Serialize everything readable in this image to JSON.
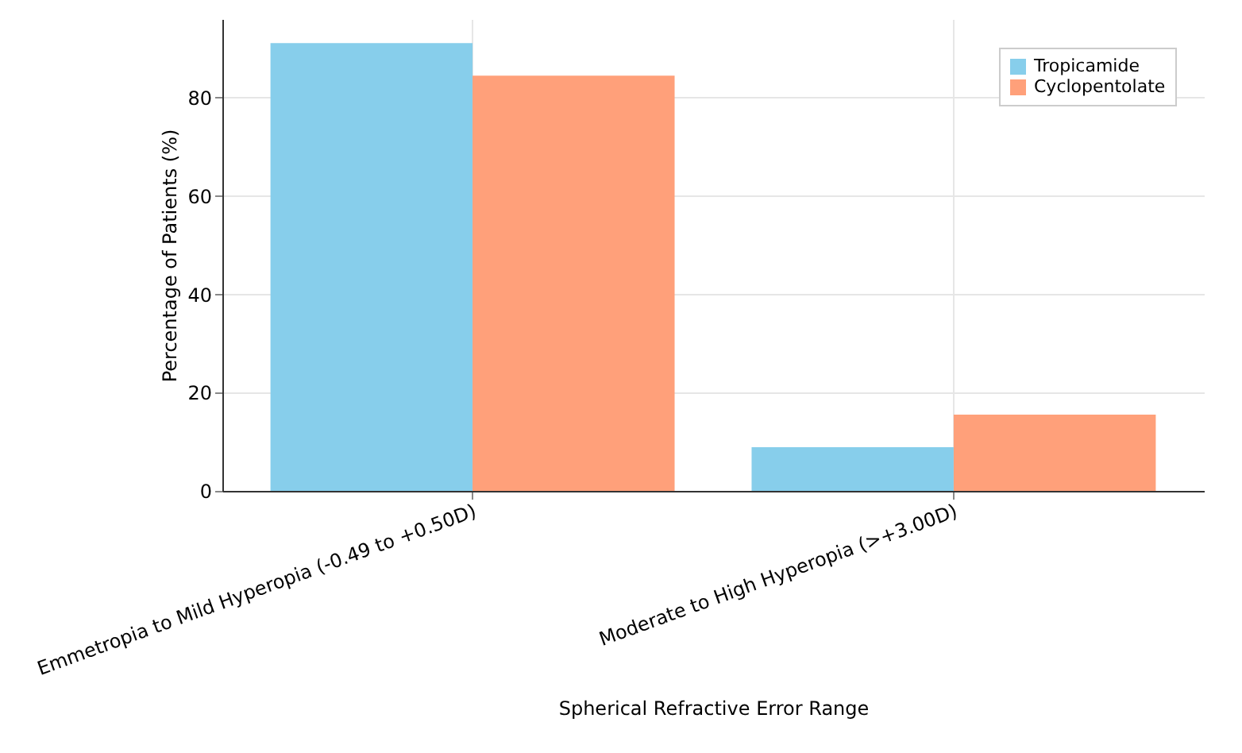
{
  "chart_data": {
    "type": "bar",
    "xlabel": "Spherical Refractive Error Range",
    "ylabel": "Percentage of Patients (%)",
    "categories": [
      "Emmetropia to Mild Hyperopia (-0.49 to +0.50D)",
      "Moderate to High Hyperopia (>+3.00D)"
    ],
    "series": [
      {
        "name": "Tropicamide",
        "color": "#87ceeb",
        "values": [
          91.1,
          8.9
        ]
      },
      {
        "name": "Cyclopentolate",
        "color": "#ffa07a",
        "values": [
          84.5,
          15.5
        ]
      }
    ],
    "ylim": [
      0,
      96
    ],
    "yticks": [
      0,
      20,
      40,
      60,
      80
    ],
    "grid": true,
    "legend": "top right"
  }
}
